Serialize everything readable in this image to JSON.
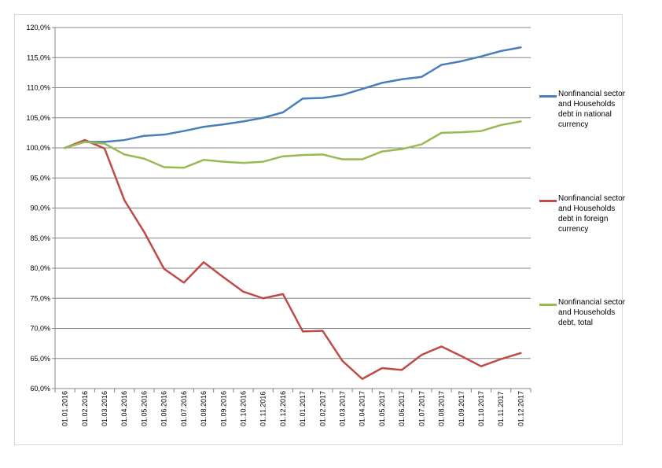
{
  "chart_data": {
    "type": "line",
    "title": "",
    "xlabel": "",
    "ylabel": "",
    "ylim": [
      60,
      120
    ],
    "y_ticks": [
      "120,0%",
      "115,0%",
      "110,0%",
      "105,0%",
      "100,0%",
      "95,0%",
      "90,0%",
      "85,0%",
      "80,0%",
      "75,0%",
      "70,0%",
      "65,0%",
      "60,0%"
    ],
    "y_tick_values": [
      120,
      115,
      110,
      105,
      100,
      95,
      90,
      85,
      80,
      75,
      70,
      65,
      60
    ],
    "categories": [
      "01.01.2016",
      "01.02.2016",
      "01.03.2016",
      "01.04.2016",
      "01.05.2016",
      "01.06.2016",
      "01.07.2016",
      "01.08.2016",
      "01.09.2016",
      "01.10.2016",
      "01.11.2016",
      "01.12.2016",
      "01.01.2017",
      "01.02.2017",
      "01.03.2017",
      "01.04.2017",
      "01.05.2017",
      "01.06.2017",
      "01.07.2017",
      "01.08.2017",
      "01.09.2017",
      "01.10.2017",
      "01.11.2017",
      "01.12.2017"
    ],
    "grid": "horizontal",
    "legend_position": "right",
    "series": [
      {
        "name": "Nonfinancial sector and Households debt in national currency",
        "color": "#4a7ebb",
        "values": [
          100.0,
          101.0,
          101.0,
          101.3,
          102.0,
          102.2,
          102.8,
          103.5,
          103.9,
          104.4,
          105.0,
          105.9,
          108.2,
          108.3,
          108.8,
          109.8,
          110.8,
          111.4,
          111.8,
          113.8,
          114.4,
          115.2,
          116.1,
          116.7
        ]
      },
      {
        "name": "Nonfinancial sector and Households debt in foreign currency",
        "color": "#be4b48",
        "values": [
          100.0,
          101.3,
          99.9,
          91.3,
          86.0,
          79.9,
          77.6,
          81.0,
          78.5,
          76.1,
          75.0,
          75.7,
          69.5,
          69.6,
          64.6,
          61.6,
          63.4,
          63.1,
          65.6,
          67.0,
          65.4,
          63.7,
          64.9,
          65.9
        ]
      },
      {
        "name": "Nonfinancial sector and Households debt, total",
        "color": "#98b954",
        "values": [
          100.0,
          101.0,
          100.7,
          98.9,
          98.2,
          96.8,
          96.7,
          98.0,
          97.7,
          97.5,
          97.7,
          98.6,
          98.8,
          98.9,
          98.1,
          98.1,
          99.4,
          99.8,
          100.6,
          102.5,
          102.6,
          102.8,
          103.8,
          104.4
        ]
      }
    ]
  }
}
